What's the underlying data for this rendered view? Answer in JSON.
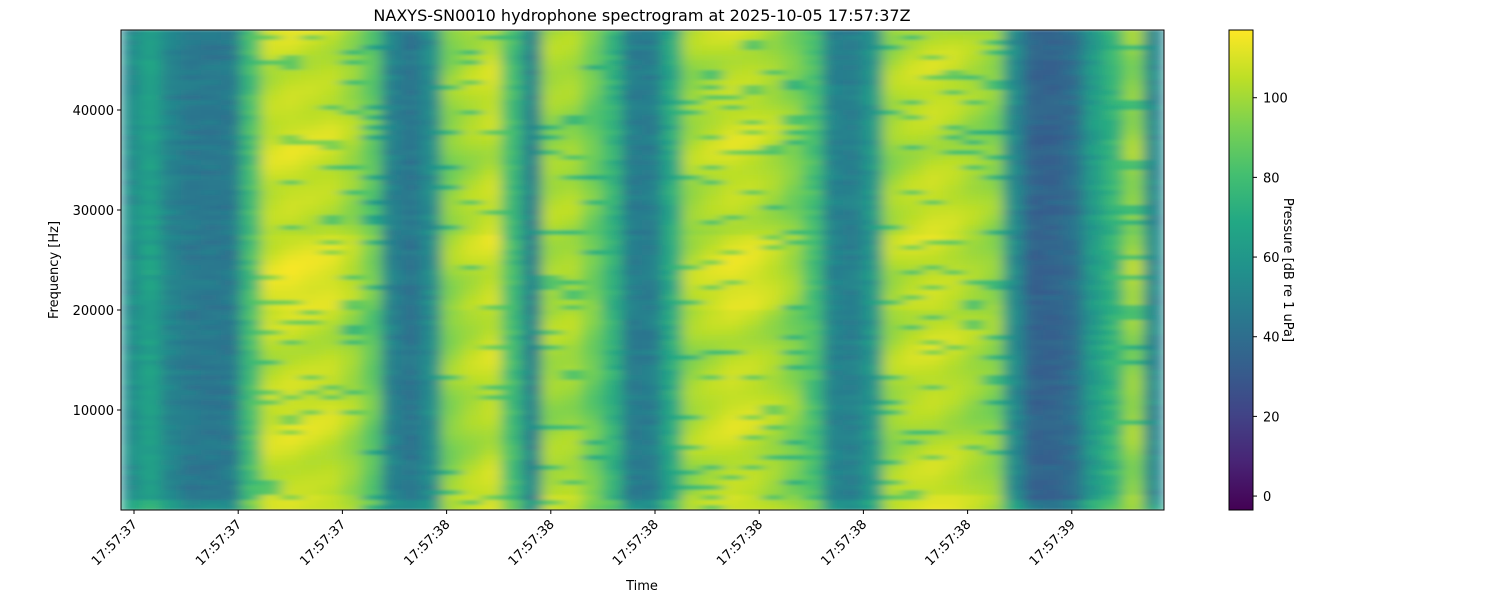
{
  "chart_data": {
    "type": "heatmap",
    "title": "NAXYS-SN0010 hydrophone spectrogram at 2025-10-05 17:57:37Z",
    "xlabel": "Time",
    "ylabel": "Frequency [Hz]",
    "ylim": [
      0,
      48000
    ],
    "y_ticks": [
      10000,
      20000,
      30000,
      40000
    ],
    "x_tick_labels": [
      "17:57:37",
      "17:57:37",
      "17:57:37",
      "17:57:38",
      "17:57:38",
      "17:57:38",
      "17:57:38",
      "17:57:38",
      "17:57:38",
      "17:57:39"
    ],
    "colorbar": {
      "label": "Pressure [dB re 1 uPa]",
      "colormap": "viridis",
      "range": [
        -3.5,
        117
      ],
      "ticks": [
        0,
        20,
        40,
        60,
        80,
        100
      ]
    },
    "time_bin_mean_db": [
      55,
      66,
      50,
      45,
      45,
      45,
      80,
      106,
      108,
      107,
      106,
      100,
      88,
      50,
      43,
      55,
      96,
      102,
      106,
      80,
      50,
      100,
      100,
      90,
      75,
      47,
      47,
      70,
      100,
      104,
      107,
      106,
      102,
      95,
      82,
      50,
      48,
      60,
      100,
      104,
      106,
      104,
      100,
      96,
      55,
      35,
      35,
      40,
      62,
      75,
      98,
      52
    ]
  }
}
